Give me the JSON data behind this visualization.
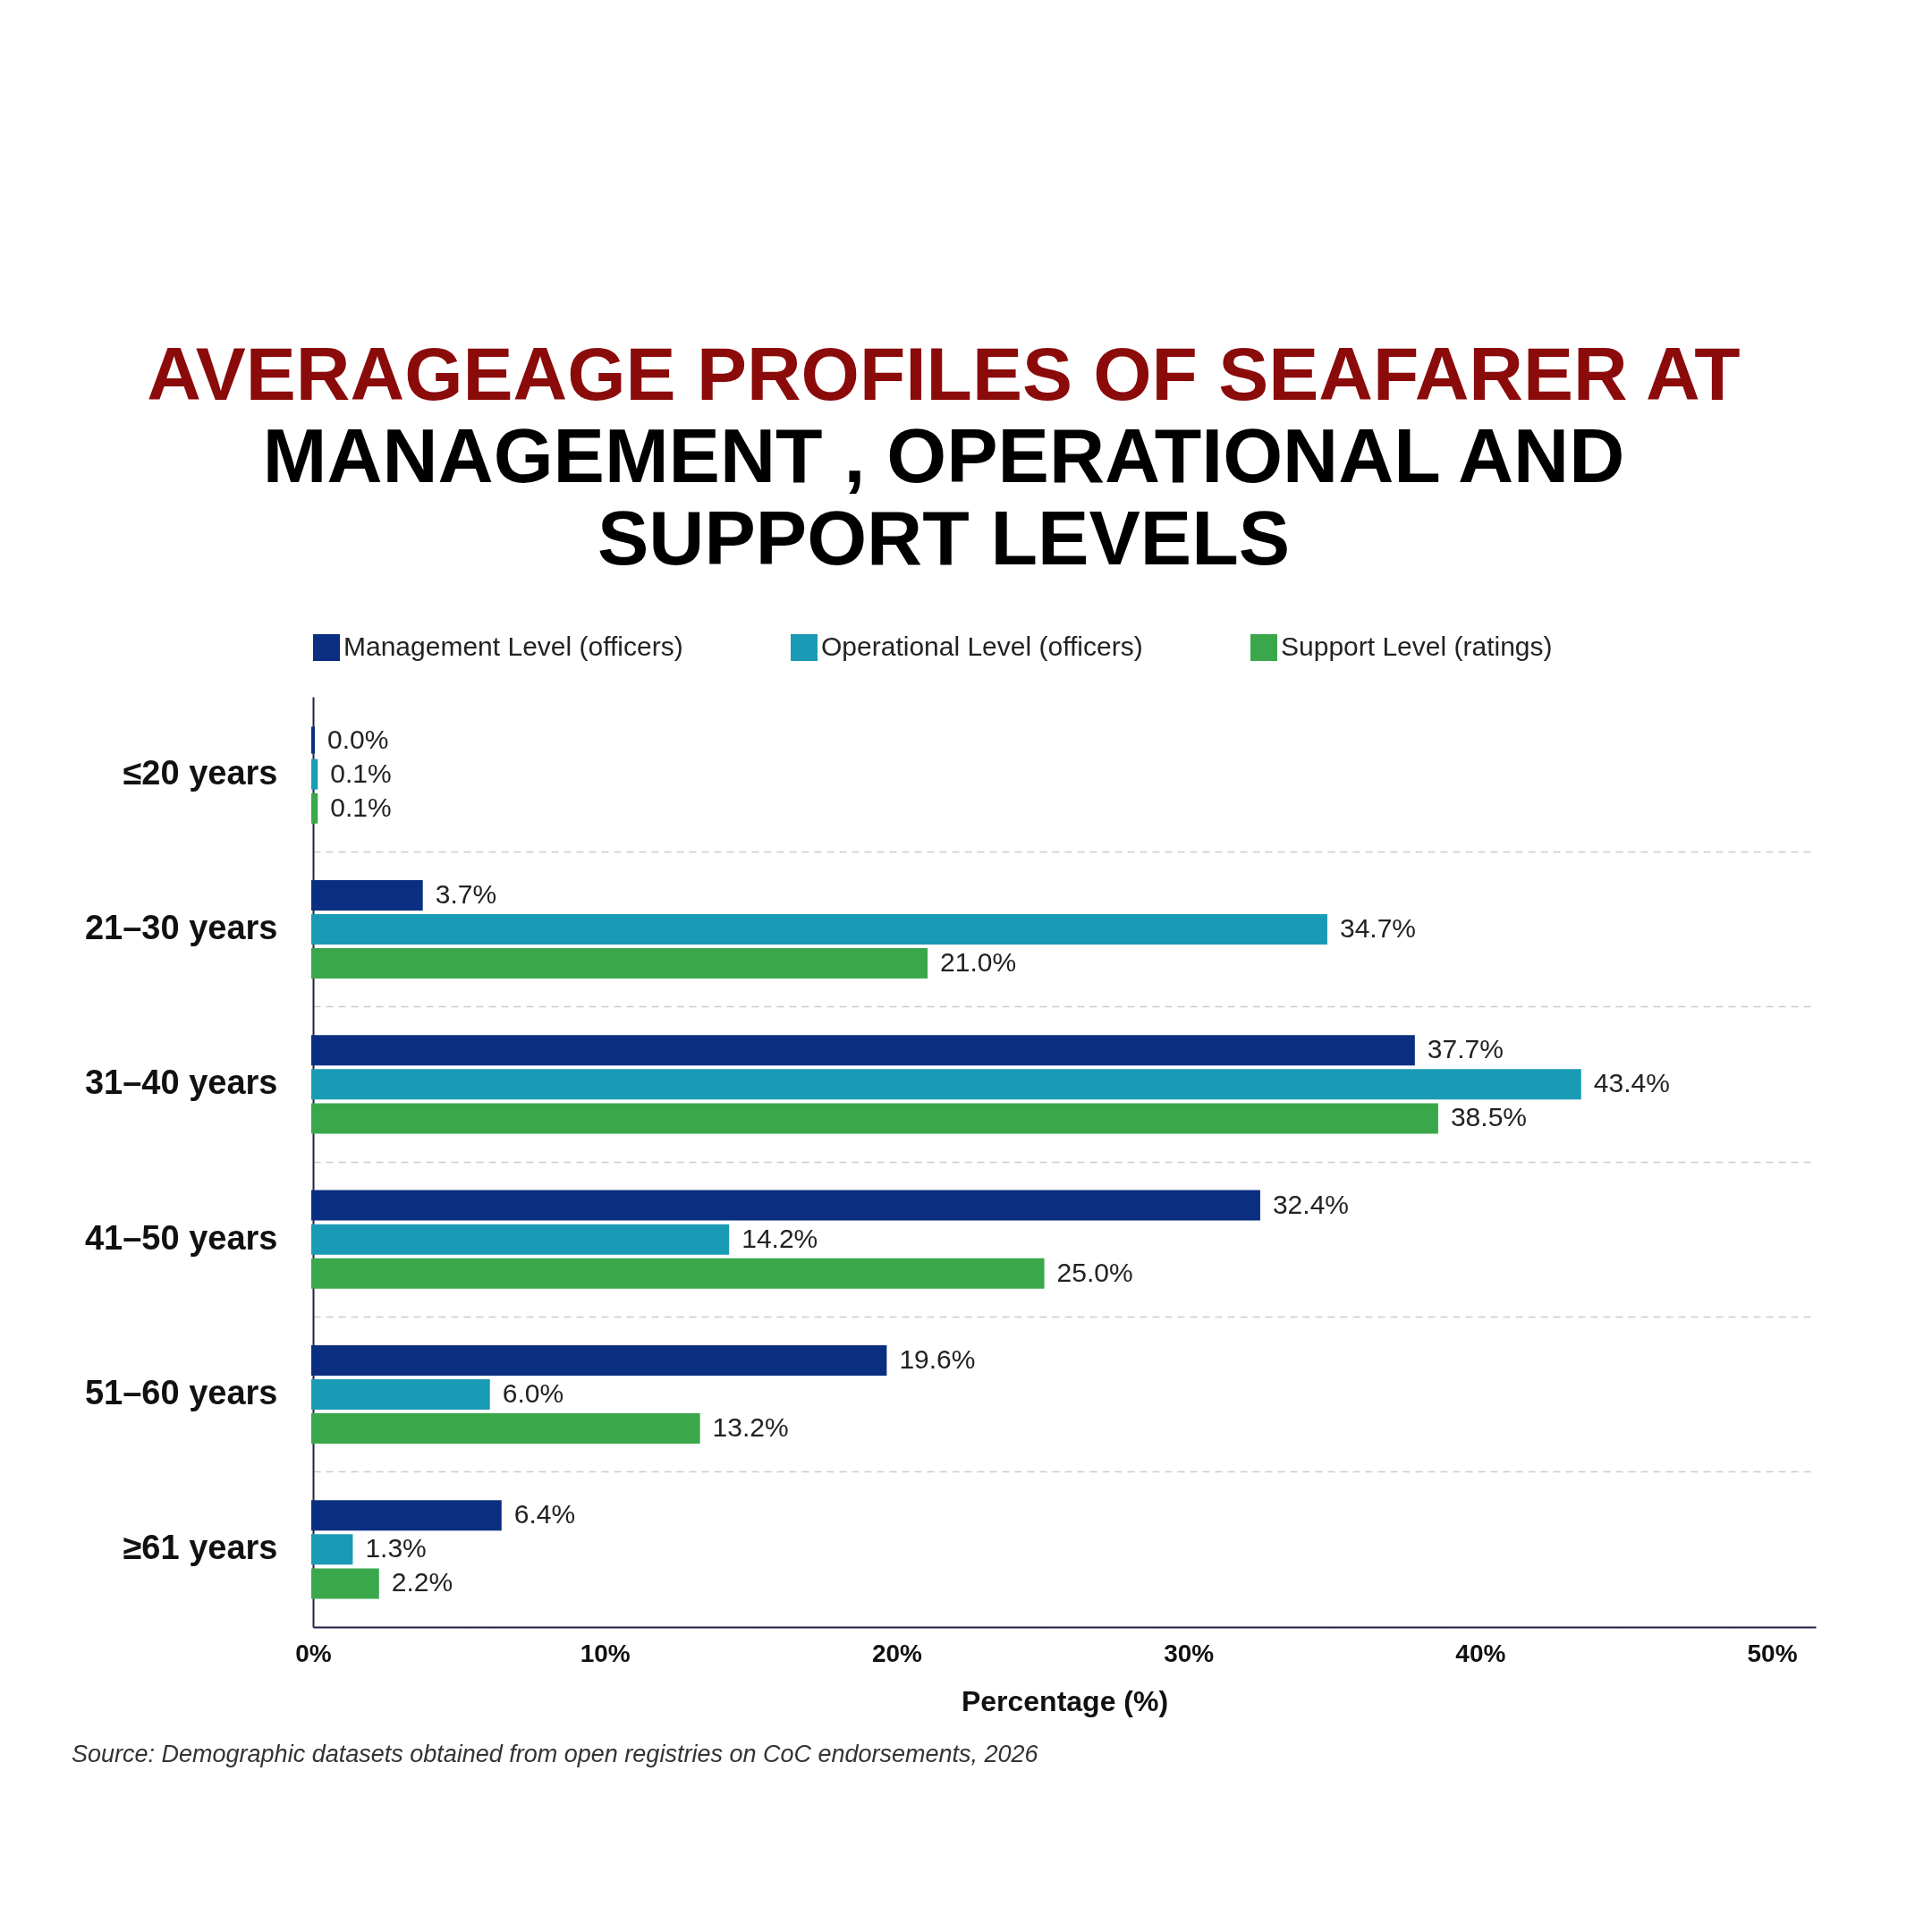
{
  "chart_data": {
    "type": "bar",
    "orientation": "horizontal",
    "title": "AVERAGEAGE PROFILES OF SEAFARER AT",
    "subtitle": "MANAGEMENT , OPERATIONAL AND SUPPORT LEVELS",
    "xlabel": "Percentage (%)",
    "categories": [
      "≤20 years",
      "21–30 years",
      "31–40 years",
      "41–50 years",
      "51–60 years",
      "≥61 years"
    ],
    "series": [
      {
        "name": "Management Level (officers)",
        "color": "#0b2f80",
        "values": [
          0.0,
          3.7,
          37.7,
          32.4,
          19.6,
          6.4
        ],
        "value_labels": [
          "0.0%",
          "3.7%",
          "37.7%",
          "32.4%",
          "19.6%",
          "6.4%"
        ]
      },
      {
        "name": "Operational Level (officers)",
        "color": "#1a9bb5",
        "values": [
          0.1,
          34.7,
          43.4,
          14.2,
          6.0,
          1.3
        ],
        "value_labels": [
          "0.1%",
          "34.7%",
          "43.4%",
          "14.2%",
          "6.0%",
          "1.3%"
        ]
      },
      {
        "name": "Support Level (ratings)",
        "color": "#3aa84a",
        "values": [
          0.1,
          21.0,
          38.5,
          25.0,
          13.2,
          2.2
        ],
        "value_labels": [
          "0.1%",
          "21.0%",
          "38.5%",
          "25.0%",
          "13.2%",
          "2.2%"
        ]
      }
    ],
    "xlim": [
      0,
      51.5
    ],
    "xticks": [
      {
        "value": 0,
        "label": "0%"
      },
      {
        "value": 10,
        "label": "10%"
      },
      {
        "value": 20,
        "label": "20%"
      },
      {
        "value": 30,
        "label": "30%"
      },
      {
        "value": 40,
        "label": "40%"
      },
      {
        "value": 50,
        "label": "50%"
      }
    ],
    "grid": "y",
    "legend": "top",
    "annotations": [
      "Source: Demographic datasets obtained from open registries on CoC endorsements, 2026"
    ]
  }
}
